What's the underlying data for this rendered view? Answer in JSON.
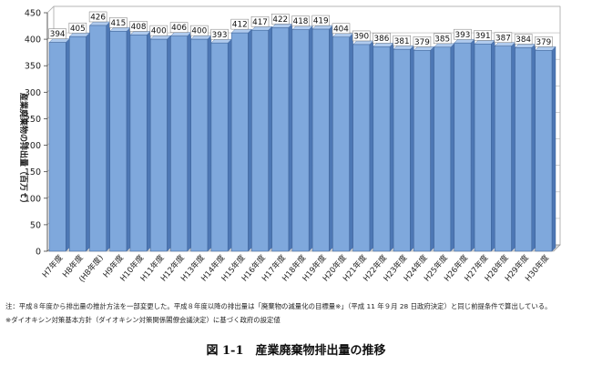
{
  "chart_data": {
    "type": "bar",
    "title": "",
    "xlabel": "",
    "ylabel": "産業廃棄物の排出量（百万ｔ）",
    "ylim": [
      0,
      450
    ],
    "yticks": [
      0,
      50,
      100,
      150,
      200,
      250,
      300,
      350,
      400,
      450
    ],
    "grid": true,
    "categories": [
      "H7年度",
      "H8年度",
      "(H8年度)",
      "H9年度",
      "H10年度",
      "H11年度",
      "H12年度",
      "H13年度",
      "H14年度",
      "H15年度",
      "H16年度",
      "H17年度",
      "H18年度",
      "H19年度",
      "H20年度",
      "H21年度",
      "H22年度",
      "H23年度",
      "H24年度",
      "H25年度",
      "H26年度",
      "H27年度",
      "H28年度",
      "H29年度",
      "H30年度"
    ],
    "values": [
      394,
      405,
      426,
      415,
      408,
      400,
      406,
      400,
      393,
      412,
      417,
      422,
      418,
      419,
      404,
      390,
      386,
      381,
      379,
      385,
      393,
      391,
      387,
      384,
      379
    ],
    "bar_color": "#7fa8dc"
  },
  "notes": {
    "line1": "注：平成８年度から排出量の推計方法を一部変更した。平成８年度以降の排出量は「廃棄物の減量化の目標量※」（平成 11 年９月 28 日政府決定）と同じ前提条件で算出している。",
    "line2": "※ダイオキシン対策基本方針（ダイオキシン対策関係閣僚会議決定）に基づく政府の設定値"
  },
  "caption": "図 1-1　産業廃棄物排出量の推移"
}
